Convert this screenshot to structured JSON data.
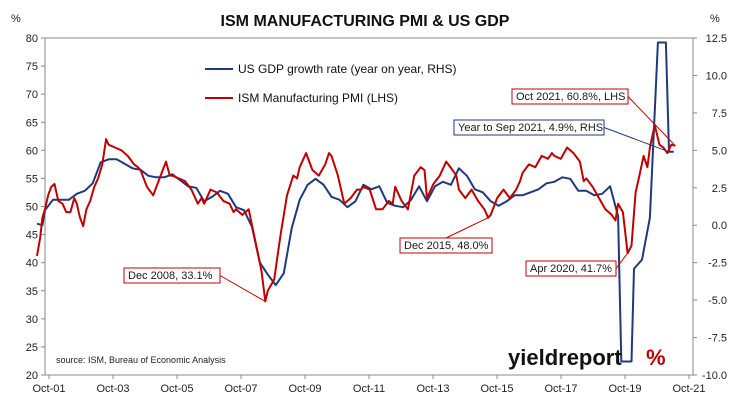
{
  "chart_data": {
    "type": "line",
    "title": "ISM MANUFACTURING PMI & US GDP",
    "left_axis_unit": "%",
    "right_axis_unit": "%",
    "x_tick_labels": [
      "Oct-01",
      "Oct-03",
      "Oct-05",
      "Oct-07",
      "Oct-09",
      "Oct-11",
      "Oct-13",
      "Oct-15",
      "Oct-17",
      "Oct-19",
      "Oct-21"
    ],
    "x_range": [
      2001.75,
      2021.85
    ],
    "y_left_range": [
      20,
      80
    ],
    "y_left_ticks": [
      20,
      25,
      30,
      35,
      40,
      45,
      50,
      55,
      60,
      65,
      70,
      75,
      80
    ],
    "y_right_range": [
      -10,
      12.5
    ],
    "y_right_ticks": [
      "-10.0",
      "-7.5",
      "-5.0",
      "-2.5",
      "0.0",
      "2.5",
      "5.0",
      "7.5",
      "10.0",
      "12.5"
    ],
    "grid": false,
    "legend_placement": "top-left",
    "series": [
      {
        "name": "US GDP growth rate (year on year, RHS)",
        "axis": "right",
        "color": "#1f3a7a",
        "points": [
          [
            2001.75,
            0.1
          ],
          [
            2001.92,
            0.0
          ],
          [
            2002.0,
            1.0
          ],
          [
            2002.25,
            1.7
          ],
          [
            2002.5,
            1.7
          ],
          [
            2002.75,
            1.7
          ],
          [
            2003.0,
            2.1
          ],
          [
            2003.25,
            2.3
          ],
          [
            2003.5,
            2.8
          ],
          [
            2003.75,
            4.2
          ],
          [
            2004.0,
            4.4
          ],
          [
            2004.25,
            4.4
          ],
          [
            2004.5,
            4.1
          ],
          [
            2004.75,
            3.8
          ],
          [
            2005.0,
            3.7
          ],
          [
            2005.25,
            3.3
          ],
          [
            2005.5,
            3.2
          ],
          [
            2005.75,
            3.2
          ],
          [
            2006.0,
            3.4
          ],
          [
            2006.25,
            3.0
          ],
          [
            2006.5,
            2.6
          ],
          [
            2006.75,
            2.5
          ],
          [
            2007.0,
            1.6
          ],
          [
            2007.25,
            1.9
          ],
          [
            2007.5,
            2.3
          ],
          [
            2007.75,
            2.1
          ],
          [
            2008.0,
            1.2
          ],
          [
            2008.25,
            1.0
          ],
          [
            2008.5,
            -0.1
          ],
          [
            2008.75,
            -2.5
          ],
          [
            2009.0,
            -3.3
          ],
          [
            2009.25,
            -4.0
          ],
          [
            2009.5,
            -3.2
          ],
          [
            2009.75,
            -0.2
          ],
          [
            2010.0,
            1.7
          ],
          [
            2010.25,
            2.7
          ],
          [
            2010.5,
            3.1
          ],
          [
            2010.75,
            2.7
          ],
          [
            2011.0,
            1.9
          ],
          [
            2011.25,
            1.7
          ],
          [
            2011.5,
            1.2
          ],
          [
            2011.75,
            1.6
          ],
          [
            2012.0,
            2.7
          ],
          [
            2012.25,
            2.4
          ],
          [
            2012.5,
            2.6
          ],
          [
            2012.75,
            1.5
          ],
          [
            2013.0,
            1.3
          ],
          [
            2013.25,
            1.2
          ],
          [
            2013.5,
            1.7
          ],
          [
            2013.75,
            2.6
          ],
          [
            2014.0,
            1.6
          ],
          [
            2014.25,
            2.6
          ],
          [
            2014.5,
            2.9
          ],
          [
            2014.75,
            2.7
          ],
          [
            2015.0,
            3.8
          ],
          [
            2015.25,
            3.3
          ],
          [
            2015.5,
            2.4
          ],
          [
            2015.75,
            2.2
          ],
          [
            2016.0,
            1.6
          ],
          [
            2016.25,
            1.3
          ],
          [
            2016.5,
            1.6
          ],
          [
            2016.75,
            2.0
          ],
          [
            2017.0,
            2.0
          ],
          [
            2017.25,
            2.2
          ],
          [
            2017.5,
            2.4
          ],
          [
            2017.75,
            2.8
          ],
          [
            2018.0,
            2.9
          ],
          [
            2018.25,
            3.2
          ],
          [
            2018.5,
            3.1
          ],
          [
            2018.75,
            2.3
          ],
          [
            2019.0,
            2.3
          ],
          [
            2019.25,
            2.0
          ],
          [
            2019.5,
            2.1
          ],
          [
            2019.75,
            2.6
          ],
          [
            2020.0,
            0.6
          ],
          [
            2020.1,
            -9.1
          ],
          [
            2020.25,
            -9.1
          ],
          [
            2020.42,
            -9.1
          ],
          [
            2020.5,
            -2.9
          ],
          [
            2020.75,
            -2.3
          ],
          [
            2021.0,
            0.5
          ],
          [
            2021.25,
            12.2
          ],
          [
            2021.5,
            12.2
          ],
          [
            2021.6,
            4.9
          ],
          [
            2021.75,
            4.9
          ]
        ]
      },
      {
        "name": "ISM Manufacturing PMI (LHS)",
        "axis": "left",
        "color": "#c00000",
        "points": [
          [
            2001.75,
            41.2
          ],
          [
            2001.85,
            44.5
          ],
          [
            2001.92,
            48.0
          ],
          [
            2002.0,
            49.5
          ],
          [
            2002.1,
            52.0
          ],
          [
            2002.2,
            53.5
          ],
          [
            2002.3,
            54.0
          ],
          [
            2002.42,
            51.0
          ],
          [
            2002.55,
            50.5
          ],
          [
            2002.67,
            49.0
          ],
          [
            2002.8,
            49.0
          ],
          [
            2002.92,
            51.5
          ],
          [
            2003.0,
            50.5
          ],
          [
            2003.1,
            48.0
          ],
          [
            2003.2,
            46.5
          ],
          [
            2003.3,
            49.5
          ],
          [
            2003.42,
            51.0
          ],
          [
            2003.55,
            53.5
          ],
          [
            2003.67,
            55.0
          ],
          [
            2003.8,
            57.5
          ],
          [
            2003.92,
            62.0
          ],
          [
            2004.0,
            61.0
          ],
          [
            2004.2,
            60.5
          ],
          [
            2004.4,
            60.0
          ],
          [
            2004.6,
            59.0
          ],
          [
            2004.8,
            57.5
          ],
          [
            2004.92,
            57.0
          ],
          [
            2005.0,
            56.5
          ],
          [
            2005.2,
            53.5
          ],
          [
            2005.4,
            52.0
          ],
          [
            2005.6,
            55.0
          ],
          [
            2005.8,
            58.0
          ],
          [
            2005.92,
            55.5
          ],
          [
            2006.0,
            55.5
          ],
          [
            2006.2,
            55.0
          ],
          [
            2006.4,
            54.5
          ],
          [
            2006.6,
            53.0
          ],
          [
            2006.8,
            50.5
          ],
          [
            2006.92,
            51.5
          ],
          [
            2007.0,
            50.5
          ],
          [
            2007.2,
            53.0
          ],
          [
            2007.4,
            52.5
          ],
          [
            2007.6,
            51.0
          ],
          [
            2007.8,
            50.5
          ],
          [
            2007.92,
            49.0
          ],
          [
            2008.0,
            49.5
          ],
          [
            2008.2,
            48.5
          ],
          [
            2008.4,
            49.5
          ],
          [
            2008.6,
            44.0
          ],
          [
            2008.8,
            38.5
          ],
          [
            2008.92,
            33.1
          ],
          [
            2009.0,
            35.0
          ],
          [
            2009.2,
            37.0
          ],
          [
            2009.4,
            45.0
          ],
          [
            2009.6,
            52.0
          ],
          [
            2009.8,
            55.5
          ],
          [
            2009.92,
            55.0
          ],
          [
            2010.0,
            57.0
          ],
          [
            2010.2,
            59.5
          ],
          [
            2010.4,
            56.5
          ],
          [
            2010.6,
            55.5
          ],
          [
            2010.8,
            57.5
          ],
          [
            2010.92,
            59.5
          ],
          [
            2011.0,
            59.0
          ],
          [
            2011.2,
            55.5
          ],
          [
            2011.4,
            50.5
          ],
          [
            2011.6,
            51.5
          ],
          [
            2011.8,
            53.0
          ],
          [
            2011.92,
            53.0
          ],
          [
            2012.0,
            53.5
          ],
          [
            2012.2,
            53.0
          ],
          [
            2012.4,
            49.5
          ],
          [
            2012.6,
            49.5
          ],
          [
            2012.8,
            51.0
          ],
          [
            2012.92,
            50.5
          ],
          [
            2013.0,
            53.5
          ],
          [
            2013.2,
            51.0
          ],
          [
            2013.4,
            49.5
          ],
          [
            2013.6,
            55.5
          ],
          [
            2013.8,
            57.0
          ],
          [
            2013.92,
            56.5
          ],
          [
            2014.0,
            51.5
          ],
          [
            2014.2,
            54.0
          ],
          [
            2014.4,
            55.5
          ],
          [
            2014.6,
            58.0
          ],
          [
            2014.8,
            56.5
          ],
          [
            2014.92,
            55.5
          ],
          [
            2015.0,
            53.0
          ],
          [
            2015.2,
            51.5
          ],
          [
            2015.4,
            53.0
          ],
          [
            2015.6,
            51.0
          ],
          [
            2015.8,
            49.5
          ],
          [
            2015.92,
            48.0
          ],
          [
            2016.0,
            48.5
          ],
          [
            2016.2,
            51.5
          ],
          [
            2016.4,
            53.0
          ],
          [
            2016.6,
            51.5
          ],
          [
            2016.8,
            53.0
          ],
          [
            2016.92,
            54.5
          ],
          [
            2017.0,
            56.0
          ],
          [
            2017.2,
            57.5
          ],
          [
            2017.4,
            57.0
          ],
          [
            2017.6,
            59.0
          ],
          [
            2017.8,
            58.5
          ],
          [
            2017.92,
            59.5
          ],
          [
            2018.0,
            59.0
          ],
          [
            2018.2,
            58.5
          ],
          [
            2018.4,
            60.5
          ],
          [
            2018.6,
            59.5
          ],
          [
            2018.8,
            58.0
          ],
          [
            2018.92,
            54.5
          ],
          [
            2019.0,
            55.0
          ],
          [
            2019.2,
            53.5
          ],
          [
            2019.4,
            51.5
          ],
          [
            2019.6,
            49.5
          ],
          [
            2019.8,
            48.5
          ],
          [
            2019.92,
            47.5
          ],
          [
            2020.0,
            50.5
          ],
          [
            2020.15,
            49.0
          ],
          [
            2020.3,
            41.7
          ],
          [
            2020.42,
            43.0
          ],
          [
            2020.55,
            52.5
          ],
          [
            2020.67,
            55.5
          ],
          [
            2020.8,
            59.0
          ],
          [
            2020.92,
            57.0
          ],
          [
            2021.0,
            60.5
          ],
          [
            2021.15,
            64.5
          ],
          [
            2021.3,
            61.0
          ],
          [
            2021.42,
            60.5
          ],
          [
            2021.55,
            59.5
          ],
          [
            2021.67,
            61.0
          ],
          [
            2021.8,
            60.8
          ]
        ]
      }
    ],
    "annotations": [
      {
        "text": "Dec 2008, 33.1%",
        "color": "#c00000",
        "axis": "left",
        "target": [
          2008.92,
          33.1
        ]
      },
      {
        "text": "Dec 2015, 48.0%",
        "color": "#c00000",
        "axis": "left",
        "target": [
          2015.92,
          48.0
        ]
      },
      {
        "text": "Apr 2020, 41.7%",
        "color": "#c00000",
        "axis": "left",
        "target": [
          2020.3,
          41.7
        ]
      },
      {
        "text": "Oct 2021, 60.8%, LHS",
        "color": "#c00000",
        "axis": "left",
        "target": [
          2021.8,
          60.8
        ]
      },
      {
        "text": "Year to Sep 2021, 4.9%, RHS",
        "color": "#1f3a7a",
        "axis": "right",
        "target": [
          2021.6,
          4.9
        ]
      }
    ],
    "source": "source: ISM, Bureau of Economic Analysis",
    "logo": {
      "main": "yieldreport",
      "mark": "%"
    }
  }
}
